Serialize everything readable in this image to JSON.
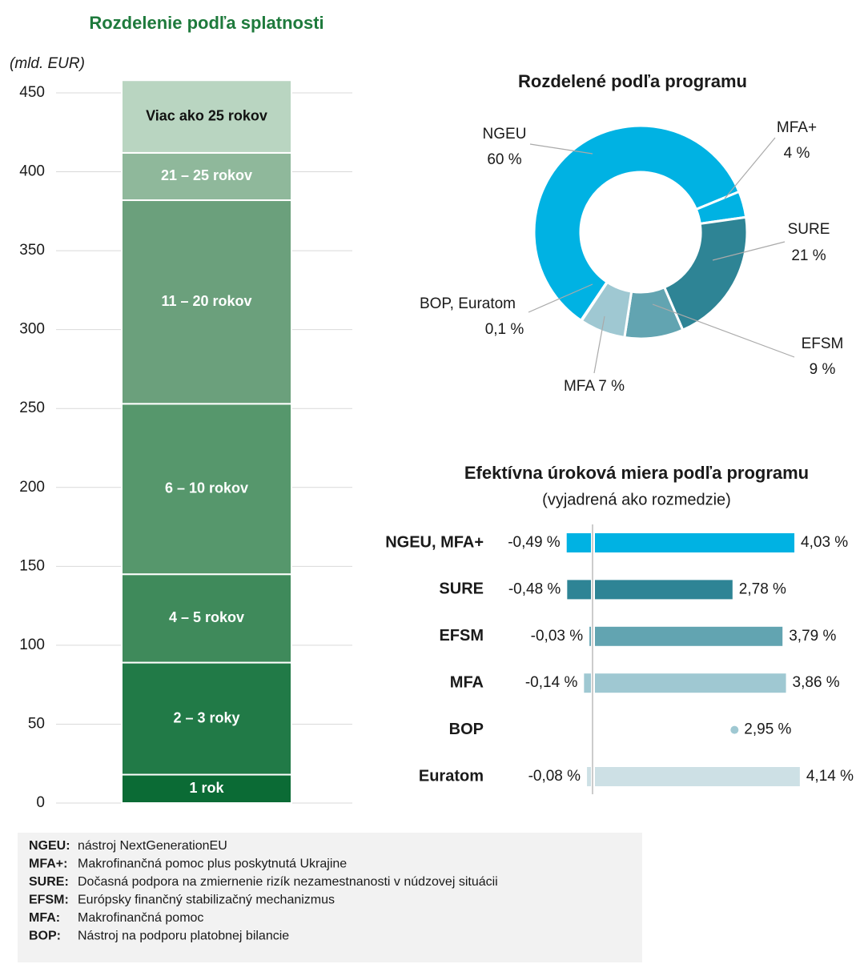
{
  "chart_data": [
    {
      "type": "stacked_bar",
      "title": "Rozdelenie podľa splatnosti",
      "y_label": "(mld. EUR)",
      "categories": [
        null
      ],
      "series": [
        {
          "name": "1 rok",
          "color": "#0b6b35",
          "values": [
            18
          ]
        },
        {
          "name": "2 – 3 roky",
          "color": "#217a47",
          "values": [
            71
          ]
        },
        {
          "name": "4 – 5 rokov",
          "color": "#3f8a5b",
          "values": [
            56
          ]
        },
        {
          "name": "6 – 10 rokov",
          "color": "#56976c",
          "values": [
            108
          ]
        },
        {
          "name": "11 – 20 rokov",
          "color": "#6ba07c",
          "values": [
            129
          ]
        },
        {
          "name": "21 – 25 rokov",
          "color": "#8fb89b",
          "values": [
            30
          ]
        },
        {
          "name": "Viac ako 25 rokov",
          "color": "#b9d5c1",
          "values": [
            46
          ]
        }
      ],
      "ylim": [
        0,
        460
      ],
      "yticks": [
        0,
        50,
        100,
        150,
        200,
        250,
        300,
        350,
        400,
        450
      ],
      "grid": true
    },
    {
      "type": "donut",
      "title": "Rozdelené podľa programu",
      "categories": [
        "NGEU",
        "MFA+",
        "SURE",
        "EFSM",
        "MFA",
        "BOP, Euratom"
      ],
      "values": [
        60,
        4,
        21,
        9,
        7,
        0.1
      ],
      "value_labels": [
        "60 %",
        "4 %",
        "21 %",
        "9 %",
        "7 %",
        "0,1 %"
      ],
      "colors": [
        "#00b2e3",
        "#00b2e3",
        "#2e8495",
        "#62a4b1",
        "#9fc8d2",
        "#c8dfe4"
      ]
    },
    {
      "type": "range",
      "title": "Efektívna úroková miera podľa programu",
      "subtitle": "(vyjadrená ako rozmedzie)",
      "categories": [
        "NGEU, MFA+",
        "SURE",
        "EFSM",
        "MFA",
        "BOP",
        "Euratom"
      ],
      "colors": [
        "#00b2e3",
        "#2e8495",
        "#62a4b1",
        "#9fc8d2",
        "#9fc8d2",
        "#cde0e5"
      ],
      "series": [
        {
          "name": "min",
          "values": [
            -0.49,
            -0.48,
            -0.03,
            -0.14,
            null,
            -0.08
          ],
          "value_labels": [
            "-0,49 %",
            "-0,48 %",
            "-0,03 %",
            "-0,14 %",
            null,
            "-0,08 %"
          ]
        },
        {
          "name": "max",
          "values": [
            4.03,
            2.78,
            3.79,
            3.86,
            2.95,
            4.14
          ],
          "value_labels": [
            "4,03 %",
            "2,78 %",
            "3,79 %",
            "3,86 %",
            "2,95 %",
            "4,14 %"
          ]
        }
      ]
    }
  ],
  "glossary": [
    {
      "abbr": "NGEU:",
      "text": "nástroj NextGenerationEU"
    },
    {
      "abbr": "MFA+:",
      "text": "Makrofinančná pomoc plus poskytnutá Ukrajine"
    },
    {
      "abbr": "SURE:",
      "text": "Dočasná podpora na zmiernenie rizík nezamestnanosti v núdzovej situácii"
    },
    {
      "abbr": "EFSM:",
      "text": "Európsky finančný stabilizačný mechanizmus"
    },
    {
      "abbr": "MFA:",
      "text": "Makrofinančná pomoc"
    },
    {
      "abbr": "BOP:",
      "text": "Nástroj na podporu platobnej bilancie"
    }
  ]
}
